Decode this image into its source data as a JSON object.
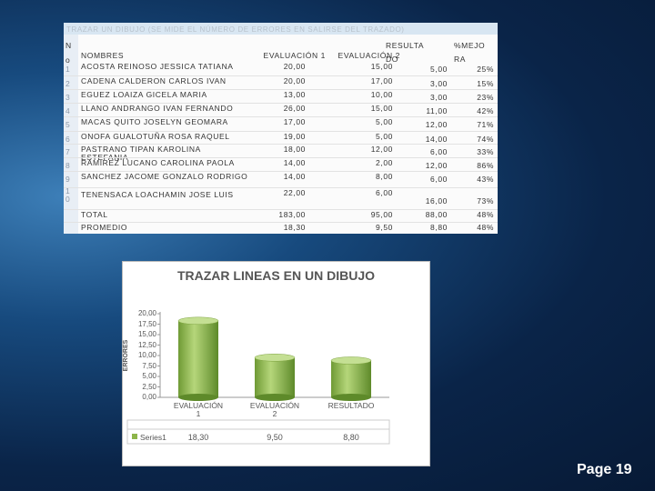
{
  "table": {
    "title": "TRAZAR UN DIBUJO (SE MIDE EL NÚMERO DE ERRORES EN SALIRSE DEL TRAZADO)",
    "headers": [
      "No",
      "NOMBRES",
      "EVALUACIÓN 1",
      "EVALUACIÓN 2",
      "RESULTADO",
      "%MEJORA"
    ],
    "rows": [
      [
        "1",
        "ACOSTA REINOSO JESSICA TATIANA",
        "20,00",
        "15,00",
        "5,00",
        "25%"
      ],
      [
        "2",
        "CADENA CALDERON CARLOS IVAN",
        "20,00",
        "17,00",
        "3,00",
        "15%"
      ],
      [
        "3",
        "EGUEZ LOAIZA GICELA MARIA",
        "13,00",
        "10,00",
        "3,00",
        "23%"
      ],
      [
        "4",
        "LLANO ANDRANGO IVAN FERNANDO",
        "26,00",
        "15,00",
        "11,00",
        "42%"
      ],
      [
        "5",
        "MACAS QUITO JOSELYN GEOMARA",
        "17,00",
        "5,00",
        "12,00",
        "71%"
      ],
      [
        "6",
        "ONOFA GUALOTUÑA ROSA RAQUEL",
        "19,00",
        "5,00",
        "14,00",
        "74%"
      ],
      [
        "7",
        "PASTRANO TIPAN KAROLINA ESTEFANIA",
        "18,00",
        "12,00",
        "6,00",
        "33%"
      ],
      [
        "8",
        "RAMIREZ LUCANO CAROLINA PAOLA",
        "14,00",
        "2,00",
        "12,00",
        "86%"
      ],
      [
        "9",
        "SANCHEZ JACOME GONZALO RODRIGO",
        "14,00",
        "8,00",
        "6,00",
        "43%"
      ],
      [
        "10",
        "TENENSACA LOACHAMIN JOSE LUIS",
        "22,00",
        "6,00",
        "16,00",
        "73%"
      ],
      [
        "",
        "TOTAL",
        "183,00",
        "95,00",
        "88,00",
        "48%"
      ],
      [
        "",
        "PROMEDIO",
        "18,30",
        "9,50",
        "8,80",
        "48%"
      ]
    ]
  },
  "chart": {
    "type": "bar",
    "title": "TRAZAR LINEAS EN UN DIBUJO",
    "y_label": "ERRORES",
    "categories": [
      "EVALUACIÓN 1",
      "EVALUACIÓN 2",
      "RESULTADO"
    ],
    "series": [
      {
        "name": "Series1",
        "color": "#8db54a",
        "values": [
          18.3,
          9.5,
          8.8
        ],
        "value_labels": [
          "18,30",
          "9,50",
          "8,80"
        ]
      }
    ],
    "ylim": [
      0,
      20
    ],
    "yticks": [
      {
        "value": 0,
        "label": "0,00"
      },
      {
        "value": 2.5,
        "label": "2,50"
      },
      {
        "value": 5,
        "label": "5,00"
      },
      {
        "value": 7.5,
        "label": "7,50"
      },
      {
        "value": 10,
        "label": "10,00"
      },
      {
        "value": 12.5,
        "label": "12,50"
      },
      {
        "value": 15,
        "label": "15,00"
      },
      {
        "value": 17.5,
        "label": "17,50"
      },
      {
        "value": 20,
        "label": "20,00"
      }
    ]
  },
  "footer": {
    "page": "Page 19"
  }
}
